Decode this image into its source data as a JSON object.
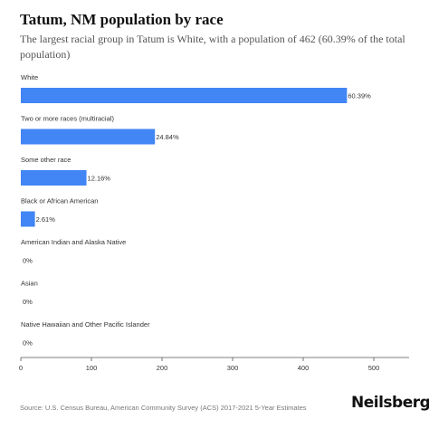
{
  "header": {
    "title": "Tatum, NM population by race",
    "subtitle": "The largest racial group in Tatum is White, with a population of 462 (60.39% of the total population)"
  },
  "chart_data": {
    "type": "bar",
    "orientation": "horizontal",
    "categories": [
      "White",
      "Two or more races (multiracial)",
      "Some other race",
      "Black or African American",
      "American Indian and Alaska Native",
      "Asian",
      "Native Hawaiian and Other Pacific Islander"
    ],
    "values": [
      462,
      190,
      93,
      20,
      0,
      0,
      0
    ],
    "value_labels": [
      "60.39%",
      "24.84%",
      "12.16%",
      "2.61%",
      "0%",
      "0%",
      "0%"
    ],
    "xlim": [
      0,
      550
    ],
    "xticks": [
      0,
      100,
      200,
      300,
      400,
      500
    ],
    "bar_color": "#4285f4",
    "grid": false,
    "legend": "none"
  },
  "footer": {
    "source": "Source: U.S. Census Bureau, American Community Survey (ACS) 2017-2021 5-Year Estimates",
    "brand": "Neilsberg"
  }
}
